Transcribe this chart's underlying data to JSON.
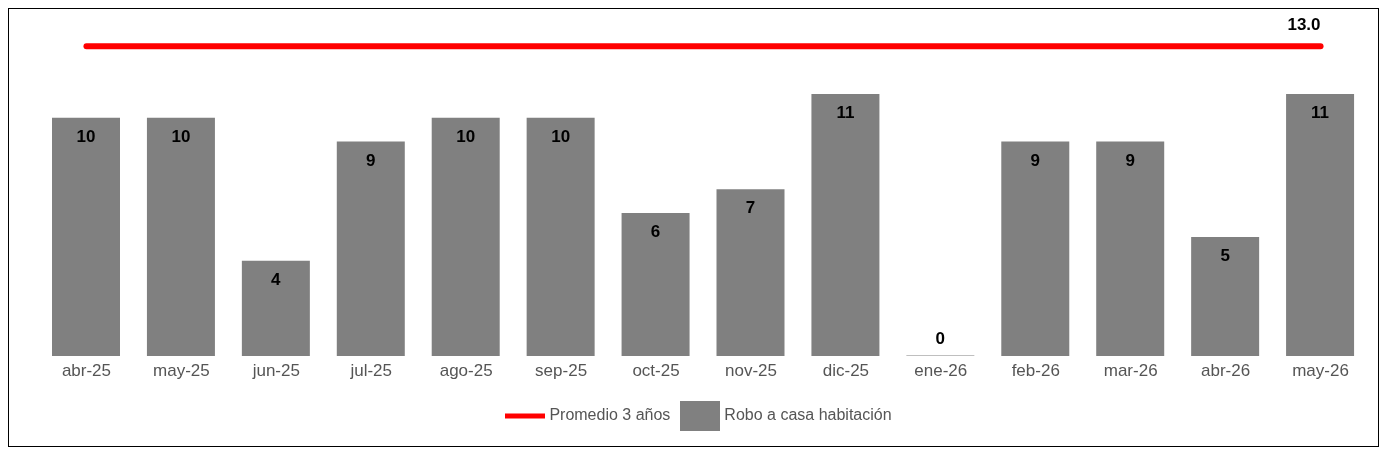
{
  "chart_data": {
    "type": "bar",
    "categories": [
      "abr-25",
      "may-25",
      "jun-25",
      "jul-25",
      "ago-25",
      "sep-25",
      "oct-25",
      "nov-25",
      "dic-25",
      "ene-26",
      "feb-26",
      "mar-26",
      "abr-26",
      "may-26"
    ],
    "series": [
      {
        "name": "Robo a casa habitación",
        "color": "#808080",
        "values": [
          10,
          10,
          4,
          9,
          10,
          10,
          6,
          7,
          11,
          0,
          9,
          9,
          5,
          11
        ],
        "value_labels": [
          "10",
          "10",
          "4",
          "9",
          "10",
          "10",
          "6",
          "7",
          "11",
          "0",
          "9",
          "9",
          "5",
          "11"
        ]
      },
      {
        "name": "Promedio 3 años",
        "type": "line",
        "color": "#ff0000",
        "values": [
          13,
          13,
          13,
          13,
          13,
          13,
          13,
          13,
          13,
          13,
          13,
          13,
          13,
          13
        ],
        "value_labels": [
          null,
          null,
          null,
          null,
          null,
          null,
          null,
          null,
          null,
          null,
          null,
          null,
          null,
          "13.0"
        ]
      }
    ],
    "legend": "bottom",
    "grid": false,
    "marker": "none"
  }
}
